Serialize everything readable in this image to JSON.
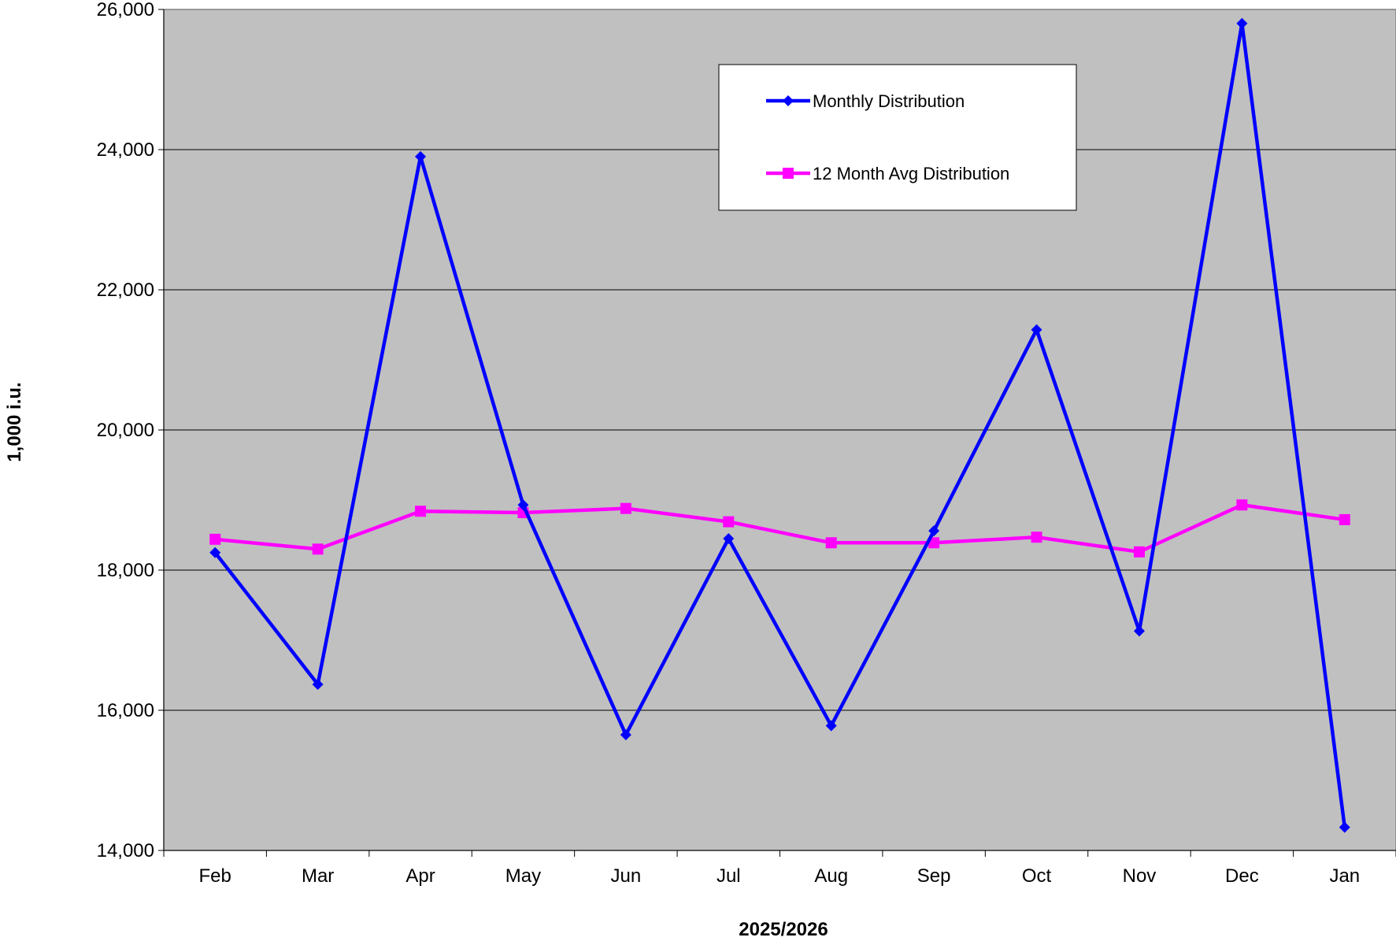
{
  "chart_data": {
    "type": "line",
    "title": "",
    "xlabel": "2025/2026",
    "ylabel": "1,000 i.u.",
    "categories": [
      "Feb",
      "Mar",
      "Apr",
      "May",
      "Jun",
      "Jul",
      "Aug",
      "Sep",
      "Oct",
      "Nov",
      "Dec",
      "Jan"
    ],
    "ylim": [
      14000,
      26000
    ],
    "yticks": [
      14000,
      16000,
      18000,
      20000,
      22000,
      24000,
      26000
    ],
    "ytick_labels": [
      "14,000",
      "16,000",
      "18,000",
      "20,000",
      "22,000",
      "24,000",
      "26,000"
    ],
    "grid": true,
    "legend_position": "top-right",
    "plot_background": "#c0c0c0",
    "series": [
      {
        "name": "Monthly Distribution",
        "color": "#0000ff",
        "marker": "diamond",
        "values": [
          18250,
          16370,
          23900,
          18930,
          15650,
          18450,
          15780,
          18560,
          21430,
          17130,
          25800,
          14330
        ]
      },
      {
        "name": "12 Month Avg Distribution",
        "color": "#ff00ff",
        "marker": "square",
        "values": [
          18440,
          18300,
          18840,
          18820,
          18880,
          18690,
          18390,
          18390,
          18470,
          18260,
          18930,
          18720
        ]
      }
    ]
  }
}
